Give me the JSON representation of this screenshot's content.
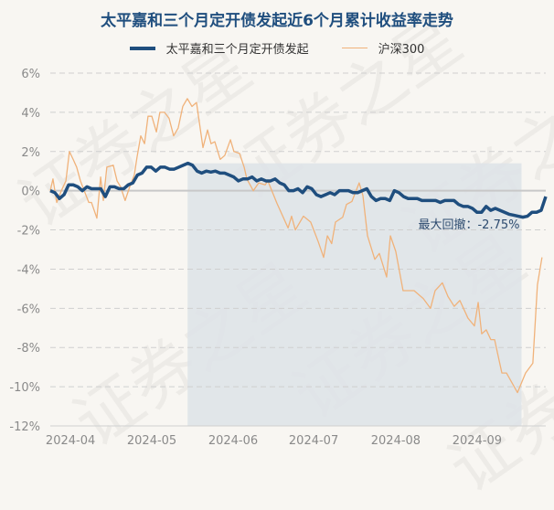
{
  "chart_data": {
    "type": "line",
    "title": "太平嘉和三个月定开债发起近6个月累计收益率走势",
    "xlabel": "",
    "ylabel": "",
    "ylim": [
      -12,
      6
    ],
    "xlim_days": [
      0,
      184
    ],
    "y_ticks": [
      6,
      4,
      2,
      0,
      -2,
      -4,
      -6,
      -8,
      -10,
      -12
    ],
    "y_tick_labels": [
      "6%",
      "4%",
      "2%",
      "0%",
      "-2%",
      "-4%",
      "-6%",
      "-8%",
      "-10%",
      "-12%"
    ],
    "x_ticks": [
      {
        "label": "2024-04",
        "day": 7.5
      },
      {
        "label": "2024-05",
        "day": 37.7
      },
      {
        "label": "2024-06",
        "day": 67.9
      },
      {
        "label": "2024-07",
        "day": 97.8
      },
      {
        "label": "2024-08",
        "day": 128.3
      },
      {
        "label": "2024-09",
        "day": 158.5
      }
    ],
    "grid": true,
    "legend_position": "top-center",
    "series": [
      {
        "name": "太平嘉和三个月定开债发起",
        "color": "#1f4e7e",
        "evenly_spaced": true,
        "values": [
          0,
          -0.1,
          -0.4,
          -0.2,
          0.3,
          0.3,
          0.2,
          0,
          0.2,
          0.1,
          0.1,
          0.1,
          -0.3,
          0.2,
          0.2,
          0.1,
          0.1,
          0.3,
          0.4,
          0.8,
          0.9,
          1.2,
          1.2,
          1.0,
          1.2,
          1.2,
          1.1,
          1.1,
          1.2,
          1.3,
          1.4,
          1.3,
          1.0,
          0.9,
          1.0,
          0.95,
          1.0,
          0.9,
          0.9,
          0.8,
          0.7,
          0.5,
          0.6,
          0.6,
          0.7,
          0.5,
          0.6,
          0.5,
          0.5,
          0.6,
          0.4,
          0.3,
          0,
          0,
          0.1,
          -0.1,
          0.2,
          0.1,
          -0.2,
          -0.3,
          -0.2,
          -0.1,
          -0.2,
          0,
          0,
          0,
          -0.1,
          -0.1,
          0,
          0.1,
          -0.3,
          -0.5,
          -0.4,
          -0.4,
          -0.5,
          0,
          -0.1,
          -0.3,
          -0.4,
          -0.4,
          -0.4,
          -0.5,
          -0.5,
          -0.5,
          -0.5,
          -0.6,
          -0.5,
          -0.5,
          -0.5,
          -0.7,
          -0.8,
          -0.8,
          -0.9,
          -1.1,
          -1.1,
          -0.8,
          -1.0,
          -0.9,
          -1.0,
          -1.1,
          -1.2,
          -1.25,
          -1.3,
          -1.35,
          -1.3,
          -1.1,
          -1.1,
          -1.0,
          -0.3
        ]
      },
      {
        "name": "沪深300",
        "color": "#f0b27a",
        "points": [
          [
            0,
            0
          ],
          [
            1,
            0.6
          ],
          [
            2.4,
            -0.6
          ],
          [
            4.1,
            0
          ],
          [
            5.8,
            0.5
          ],
          [
            7.1,
            2.0
          ],
          [
            8.5,
            1.6
          ],
          [
            9.8,
            1.2
          ],
          [
            11.2,
            0.5
          ],
          [
            12.6,
            0
          ],
          [
            14.3,
            -0.6
          ],
          [
            15.3,
            -0.6
          ],
          [
            17.3,
            -1.4
          ],
          [
            18.7,
            0.7
          ],
          [
            19.7,
            -0.5
          ],
          [
            21,
            1.2
          ],
          [
            23.4,
            1.3
          ],
          [
            24.8,
            0.5
          ],
          [
            26.1,
            0.2
          ],
          [
            27.8,
            -0.5
          ],
          [
            29.5,
            0.2
          ],
          [
            31.2,
            0.8
          ],
          [
            32.2,
            1.7
          ],
          [
            33.6,
            2.8
          ],
          [
            35,
            2.4
          ],
          [
            36.3,
            3.8
          ],
          [
            37.7,
            3.8
          ],
          [
            39.4,
            3.0
          ],
          [
            40.7,
            4.0
          ],
          [
            42.4,
            4.0
          ],
          [
            44.1,
            3.7
          ],
          [
            45.8,
            2.8
          ],
          [
            47.5,
            3.2
          ],
          [
            49.2,
            4.3
          ],
          [
            50.9,
            4.7
          ],
          [
            52.6,
            4.3
          ],
          [
            54.3,
            4.5
          ],
          [
            56.7,
            2.2
          ],
          [
            58.4,
            3.1
          ],
          [
            59.7,
            2.4
          ],
          [
            61.1,
            2.5
          ],
          [
            63.1,
            1.6
          ],
          [
            64.8,
            1.8
          ],
          [
            66.9,
            2.6
          ],
          [
            68.2,
            2.0
          ],
          [
            70.3,
            1.9
          ],
          [
            72,
            1.2
          ],
          [
            73,
            0.6
          ],
          [
            75.4,
            0
          ],
          [
            77.4,
            0.4
          ],
          [
            79.8,
            0.3
          ],
          [
            80.8,
            0.5
          ],
          [
            84.2,
            -0.65
          ],
          [
            88.3,
            -1.9
          ],
          [
            89.6,
            -1.3
          ],
          [
            91,
            -2.0
          ],
          [
            94,
            -1.3
          ],
          [
            96.7,
            -1.6
          ],
          [
            99.5,
            -2.6
          ],
          [
            101.5,
            -3.4
          ],
          [
            102.9,
            -2.3
          ],
          [
            104.5,
            -2.7
          ],
          [
            105.9,
            -1.6
          ],
          [
            108.6,
            -1.35
          ],
          [
            110,
            -0.7
          ],
          [
            112,
            -0.55
          ],
          [
            114.7,
            0.4
          ],
          [
            116.1,
            -0.25
          ],
          [
            117.8,
            -2.3
          ],
          [
            120.5,
            -3.5
          ],
          [
            122.2,
            -3.2
          ],
          [
            124.9,
            -4.4
          ],
          [
            126.3,
            -2.3
          ],
          [
            128.3,
            -3.1
          ],
          [
            131,
            -5.1
          ],
          [
            135.1,
            -5.1
          ],
          [
            138.5,
            -5.5
          ],
          [
            141.2,
            -6.0
          ],
          [
            142.9,
            -5.1
          ],
          [
            145.6,
            -4.7
          ],
          [
            147.7,
            -5.4
          ],
          [
            150,
            -5.9
          ],
          [
            152.1,
            -5.6
          ],
          [
            155.1,
            -6.5
          ],
          [
            157.5,
            -6.9
          ],
          [
            158.9,
            -5.7
          ],
          [
            160.2,
            -7.3
          ],
          [
            161.9,
            -7.1
          ],
          [
            163.6,
            -7.6
          ],
          [
            165,
            -7.6
          ],
          [
            167.7,
            -9.3
          ],
          [
            169.4,
            -9.3
          ],
          [
            173.5,
            -10.3
          ],
          [
            176.5,
            -9.3
          ],
          [
            179.2,
            -8.8
          ],
          [
            180.9,
            -4.8
          ],
          [
            182.6,
            -3.4
          ]
        ]
      }
    ],
    "max_drawdown": {
      "label": "最大回撤：-2.75%",
      "start_day": 51,
      "end_day": 175,
      "peak_value": 1.4,
      "shade_color": "#dde3e8"
    },
    "watermark": "证券之星"
  }
}
